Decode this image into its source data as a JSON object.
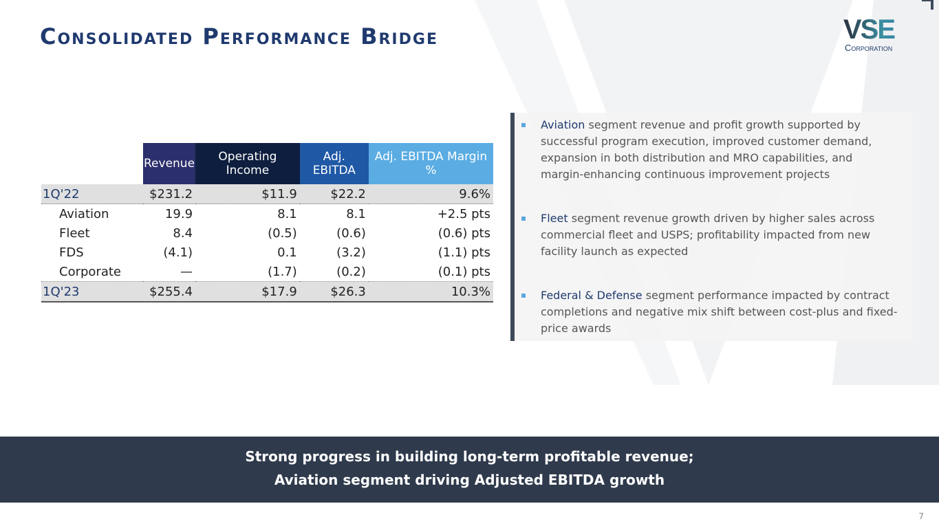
{
  "title": "Consolidated Performance Bridge",
  "logo": {
    "main": "VSE",
    "sub": "Corporation"
  },
  "table": {
    "headers": [
      "Revenue",
      "Operating Income",
      "Adj. EBITDA",
      "Adj. EBITDA Margin %"
    ],
    "header_colors": [
      "#2b2f6b",
      "#0e1e3e",
      "#1f58a5",
      "#5aace2"
    ],
    "rows": [
      {
        "label": "1Q'22",
        "values": [
          "$231.2",
          "$11.9",
          "$22.2",
          "9.6%"
        ]
      },
      {
        "label": "Aviation",
        "values": [
          "19.9",
          "8.1",
          "8.1",
          "+2.5 pts"
        ]
      },
      {
        "label": "Fleet",
        "values": [
          "8.4",
          "(0.5)",
          "(0.6)",
          "(0.6) pts"
        ]
      },
      {
        "label": "FDS",
        "values": [
          "(4.1)",
          "0.1",
          "(3.2)",
          "(1.1) pts"
        ]
      },
      {
        "label": "Corporate",
        "values": [
          "—",
          "(1.7)",
          "(0.2)",
          "(0.1) pts"
        ]
      },
      {
        "label": "1Q'23",
        "values": [
          "$255.4",
          "$17.9",
          "$26.3",
          "10.3%"
        ]
      }
    ]
  },
  "bullets": [
    {
      "lead": "Aviation",
      "text": " segment revenue and profit growth supported by successful program execution, improved customer demand, expansion in both distribution and MRO capabilities, and margin-enhancing continuous improvement projects"
    },
    {
      "lead": "Fleet",
      "text": " segment revenue growth driven by higher sales across commercial fleet and USPS; profitability impacted from new facility launch as expected"
    },
    {
      "lead": "Federal & Defense",
      "text": " segment performance impacted by contract completions and negative mix shift between cost-plus and fixed-price awards"
    }
  ],
  "banner": [
    "Strong progress in building long-term profitable revenue;",
    "Aviation segment driving Adjusted EBITDA growth"
  ],
  "page_number": "7"
}
